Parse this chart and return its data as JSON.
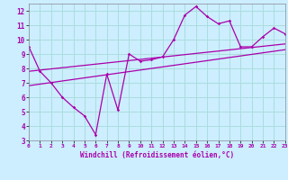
{
  "title": "",
  "xlabel": "Windchill (Refroidissement éolien,°C)",
  "bg_color": "#cceeff",
  "grid_color": "#aadddd",
  "line_color": "#aa00aa",
  "x_data": [
    0,
    1,
    2,
    3,
    4,
    5,
    6,
    7,
    8,
    9,
    10,
    11,
    12,
    13,
    14,
    15,
    16,
    17,
    18,
    19,
    20,
    21,
    22,
    23
  ],
  "y_main": [
    9.5,
    7.8,
    7.0,
    6.0,
    5.3,
    4.7,
    3.4,
    7.6,
    5.1,
    9.0,
    8.5,
    8.6,
    8.8,
    10.0,
    11.7,
    12.3,
    11.6,
    11.1,
    11.3,
    9.5,
    9.5,
    10.2,
    10.8,
    10.4
  ],
  "y_trend1_start": 7.8,
  "y_trend1_end": 9.7,
  "y_trend2_start": 6.8,
  "y_trend2_end": 9.3,
  "xlim": [
    0,
    23
  ],
  "ylim": [
    3,
    12.5
  ],
  "yticks": [
    3,
    4,
    5,
    6,
    7,
    8,
    9,
    10,
    11,
    12
  ],
  "xticks": [
    0,
    1,
    2,
    3,
    4,
    5,
    6,
    7,
    8,
    9,
    10,
    11,
    12,
    13,
    14,
    15,
    16,
    17,
    18,
    19,
    20,
    21,
    22,
    23
  ]
}
